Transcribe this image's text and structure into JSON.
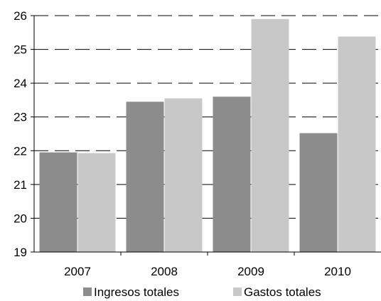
{
  "chart_data": {
    "type": "bar",
    "title": "",
    "xlabel": "",
    "ylabel": "",
    "categories": [
      "2007",
      "2008",
      "2009",
      "2010"
    ],
    "series": [
      {
        "name": "Ingresos totales",
        "values": [
          21.95,
          23.45,
          23.6,
          22.52
        ],
        "color": "#8c8c8c"
      },
      {
        "name": "Gastos totales",
        "values": [
          21.93,
          23.55,
          25.9,
          25.38
        ],
        "color": "#c8c8c8"
      }
    ],
    "ylim": [
      19,
      26
    ],
    "yticks": [
      "19",
      "20",
      "21",
      "22",
      "23",
      "24",
      "25",
      "26"
    ],
    "grid": true,
    "grid_style": "dashed",
    "legend": "bottom"
  }
}
